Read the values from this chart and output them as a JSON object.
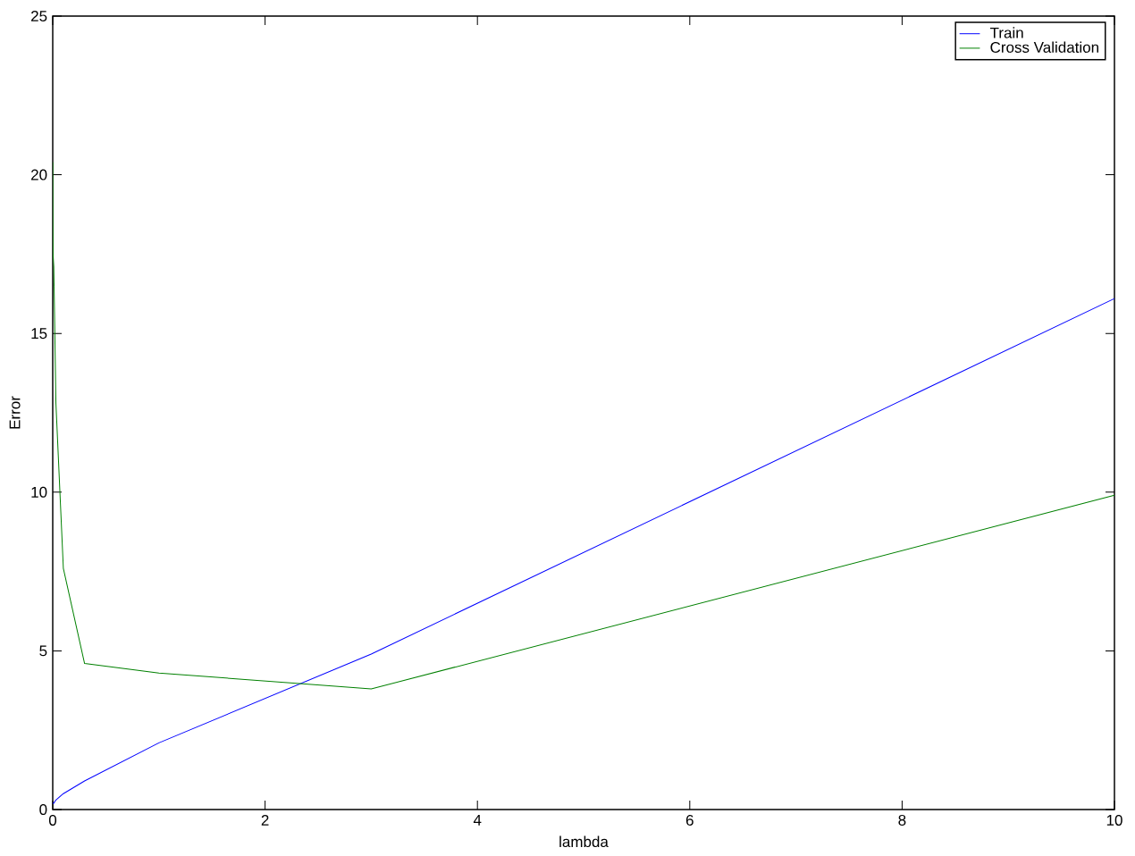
{
  "chart_data": {
    "type": "line",
    "xlabel": "lambda",
    "ylabel": "Error",
    "x": [
      0,
      0.001,
      0.003,
      0.01,
      0.03,
      0.1,
      0.3,
      1,
      3,
      10
    ],
    "series": [
      {
        "name": "Train",
        "color": "#0000ff",
        "values": [
          0.2,
          0.2,
          0.2,
          0.2,
          0.3,
          0.5,
          0.9,
          2.1,
          4.9,
          16.1
        ]
      },
      {
        "name": "Cross Validation",
        "color": "#008000",
        "values": [
          20.4,
          18.6,
          17.5,
          17.1,
          12.8,
          7.6,
          4.6,
          4.3,
          3.8,
          9.9
        ]
      }
    ],
    "xlim": [
      0,
      10
    ],
    "ylim": [
      0,
      25
    ],
    "xticks": [
      0,
      2,
      4,
      6,
      8,
      10
    ],
    "yticks": [
      0,
      5,
      10,
      15,
      20,
      25
    ],
    "legend": "top right",
    "line_style": "solid"
  }
}
